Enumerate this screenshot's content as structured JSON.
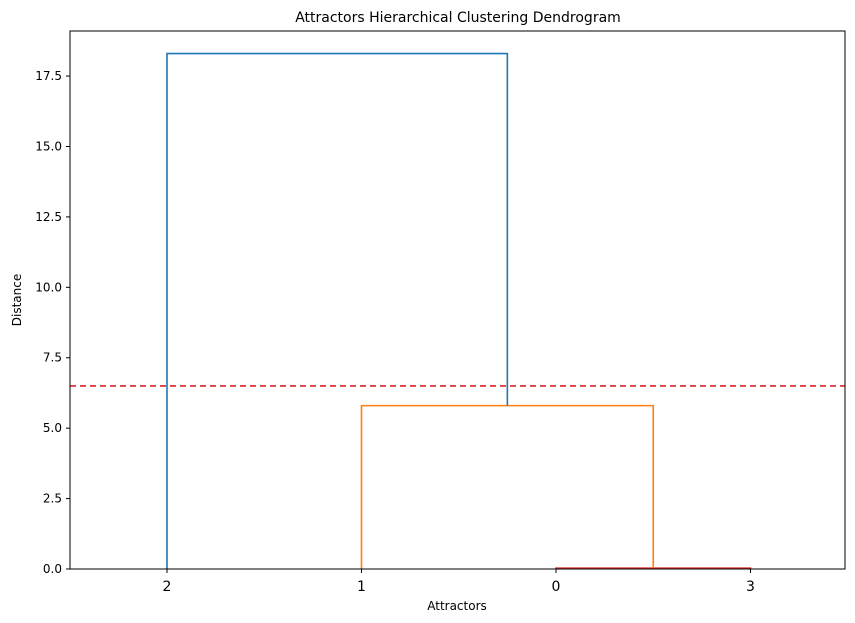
{
  "chart_data": {
    "type": "dendrogram",
    "title": "Attractors Hierarchical Clustering Dendrogram",
    "xlabel": "Attractors",
    "ylabel": "Distance",
    "ylim": [
      0,
      19.1
    ],
    "yticks": [
      "0.0",
      "2.5",
      "5.0",
      "7.5",
      "10.0",
      "12.5",
      "15.0",
      "17.5"
    ],
    "leaf_order": [
      "2",
      "1",
      "0",
      "3"
    ],
    "merges": [
      {
        "left": "0",
        "right": "3",
        "distance": 0.03,
        "color": "#d62728"
      },
      {
        "left": "1",
        "right": "{0,3}",
        "distance": 5.8,
        "color": "#ff7f0e"
      },
      {
        "left": "2",
        "right": "{1,0,3}",
        "distance": 18.3,
        "color": "#1f77b4"
      }
    ],
    "threshold": {
      "distance": 6.5,
      "color": "#d62728",
      "style": "dashed"
    },
    "grid": false,
    "legend": "none"
  }
}
